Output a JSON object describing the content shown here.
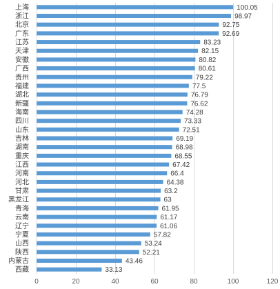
{
  "chart_data": {
    "type": "bar",
    "orientation": "horizontal",
    "title": "",
    "xlabel": "",
    "ylabel": "",
    "xlim": [
      0,
      120
    ],
    "xticks": [
      0,
      20,
      40,
      60,
      80,
      100,
      120
    ],
    "grid": true,
    "legend": "none",
    "bar_color": "#5b9bd5",
    "categories": [
      "上海",
      "浙江",
      "北京",
      "广东",
      "江苏",
      "天津",
      "安徽",
      "广西",
      "贵州",
      "福建",
      "湖北",
      "新疆",
      "海南",
      "四川",
      "山东",
      "吉林",
      "湖南",
      "重庆",
      "江西",
      "河南",
      "河北",
      "甘肃",
      "黑龙江",
      "青海",
      "云南",
      "辽宁",
      "宁夏",
      "山西",
      "陕西",
      "内蒙古",
      "西藏"
    ],
    "values": [
      100.05,
      98.97,
      92.75,
      92.69,
      83.23,
      82.15,
      80.82,
      80.61,
      79.22,
      77.5,
      76.79,
      76.62,
      74.28,
      73.33,
      72.51,
      69.19,
      68.98,
      68.55,
      67.42,
      66.4,
      64.38,
      63.2,
      63,
      61.95,
      61.17,
      61.06,
      57.82,
      53.24,
      52.21,
      43.46,
      33.13
    ],
    "value_labels": [
      "100.05",
      "98.97",
      "92.75",
      "92.69",
      "83.23",
      "82.15",
      "80.82",
      "80.61",
      "79.22",
      "77.5",
      "76.79",
      "76.62",
      "74.28",
      "73.33",
      "72.51",
      "69.19",
      "68.98",
      "68.55",
      "67.42",
      "66.4",
      "64.38",
      "63.2",
      "63",
      "61.95",
      "61.17",
      "61.06",
      "57.82",
      "53.24",
      "52.21",
      "43.46",
      "33.13"
    ]
  }
}
